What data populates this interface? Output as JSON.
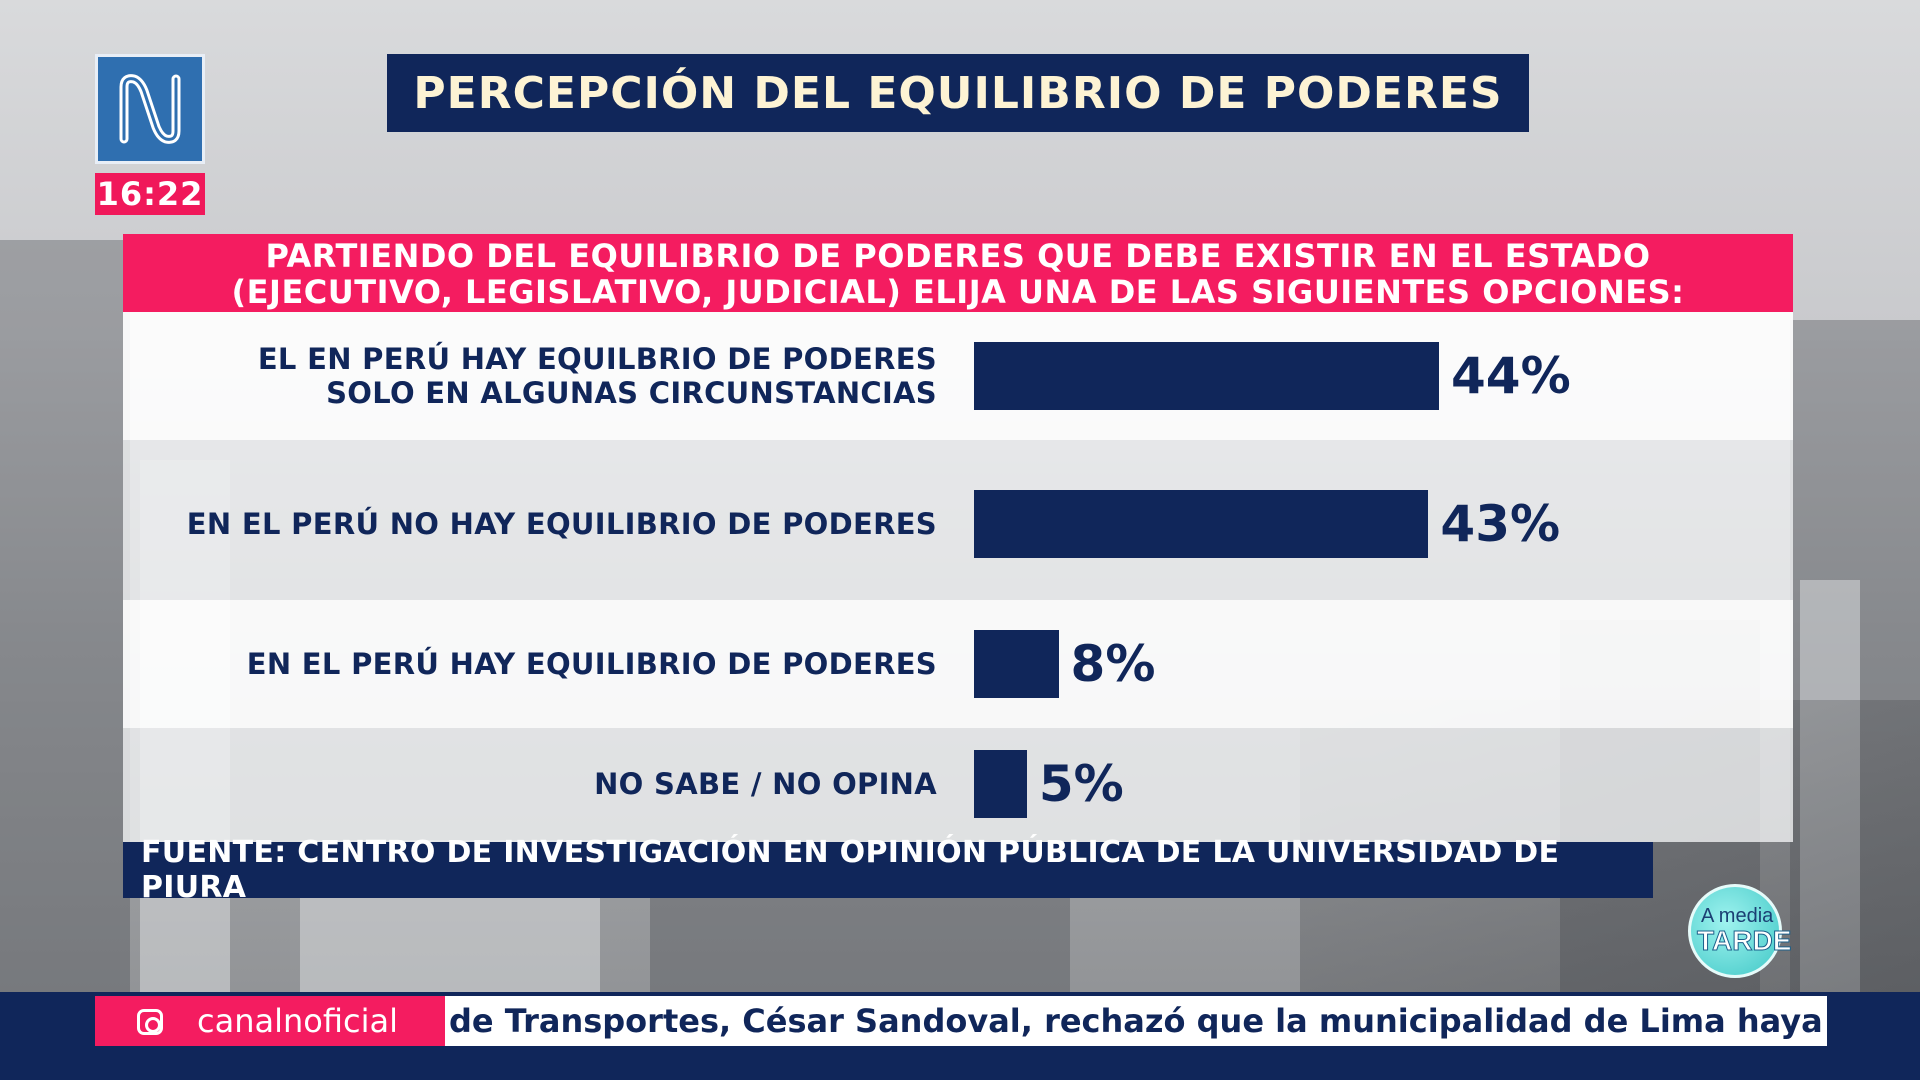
{
  "clock": "16:22",
  "title": "PERCEPCIÓN DEL EQUILIBRIO DE PODERES",
  "question": {
    "line1": "PARTIENDO DEL EQUILIBRIO DE PODERES QUE DEBE EXISTIR EN EL ESTADO",
    "line2": "(EJECUTIVO, LEGISLATIVO, JUDICIAL) ELIJA UNA DE LAS SIGUIENTES OPCIONES:"
  },
  "source": "FUENTE: CENTRO DE INVESTIGACIÓN EN OPINIÓN PÚBLICA DE LA UNIVERSIDAD DE PIURA",
  "show_logo": {
    "top": "A media",
    "bottom": "TARDE"
  },
  "social_handle": "canalnoficial",
  "ticker_text": "de Transportes, César Sandoval, rechazó que la municipalidad de Lima haya informado",
  "colors": {
    "navy": "#10265a",
    "pink": "#f41c60",
    "cream": "#fdf3d4"
  },
  "chart_data": {
    "type": "bar",
    "orientation": "horizontal",
    "title": "PERCEPCIÓN DEL EQUILIBRIO DE PODERES",
    "categories": [
      [
        "EL EN PERÚ HAY EQUILBRIO DE PODERES",
        "SOLO EN ALGUNAS CIRCUNSTANCIAS"
      ],
      [
        "EN EL PERÚ NO HAY EQUILIBRIO DE PODERES"
      ],
      [
        "EN EL PERÚ HAY EQUILIBRIO DE PODERES"
      ],
      [
        "NO SABE / NO OPINA"
      ]
    ],
    "values": [
      44,
      43,
      8,
      5
    ],
    "value_labels": [
      "44%",
      "43%",
      "8%",
      "5%"
    ],
    "unit": "%",
    "xlim": [
      0,
      100
    ],
    "grid": false,
    "legend": "none"
  }
}
